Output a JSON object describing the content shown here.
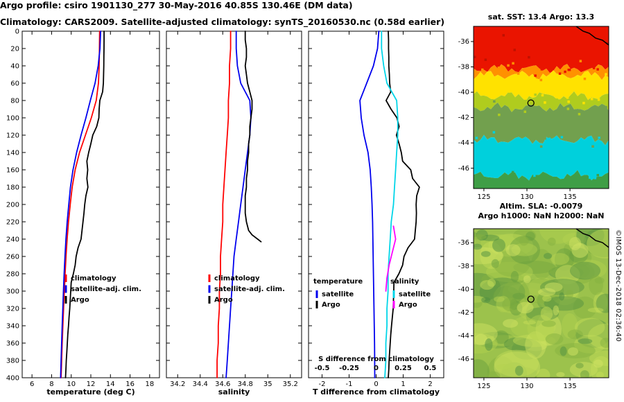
{
  "header": {
    "title_line1": "Argo profile: csiro 1901130_277 30-May-2016 40.85S 130.46E (DM data)",
    "title_line2": "Climatology: CARS2009. Satellite-adjusted climatology: synTS_20160530.nc (0.58d earlier)"
  },
  "footer": {
    "copyright": "©IMOS 13-Dec-2018 02:36:40"
  },
  "colors": {
    "climatology": "#ff0000",
    "satellite_adjusted": "#0000ee",
    "argo": "#000000",
    "satellite_salinity": "#00d5e8",
    "argo_salinity": "#ff00ff"
  },
  "chart_data": [
    {
      "type": "line",
      "name": "temperature-profile",
      "xlabel": "temperature (deg C)",
      "xlim": [
        5,
        19
      ],
      "ylim": [
        400,
        0
      ],
      "xticks": [
        6,
        8,
        10,
        12,
        14,
        16,
        18
      ],
      "yticks": [
        0,
        20,
        40,
        60,
        80,
        100,
        120,
        140,
        160,
        180,
        200,
        220,
        240,
        260,
        280,
        300,
        320,
        340,
        360,
        380,
        400
      ],
      "legend": [
        {
          "label": "climatology",
          "color": "#ff0000"
        },
        {
          "label": "satellite-adj. clim.",
          "color": "#0000ee"
        },
        {
          "label": "Argo",
          "color": "#000000"
        }
      ],
      "series": [
        {
          "name": "climatology",
          "color": "#ff0000",
          "depths": [
            0,
            20,
            40,
            60,
            80,
            100,
            120,
            140,
            160,
            180,
            200,
            220,
            240,
            260,
            280,
            300,
            320,
            340,
            360,
            380,
            400
          ],
          "values": [
            12.9,
            12.88,
            12.85,
            12.78,
            12.55,
            12.05,
            11.45,
            10.85,
            10.4,
            10.1,
            9.9,
            9.72,
            9.58,
            9.47,
            9.38,
            9.3,
            9.22,
            9.15,
            9.08,
            9.02,
            8.97
          ]
        },
        {
          "name": "satellite-adj-clim",
          "color": "#0000ee",
          "depths": [
            0,
            20,
            40,
            60,
            80,
            100,
            120,
            140,
            160,
            180,
            200,
            220,
            240,
            260,
            280,
            300,
            320,
            340,
            360,
            380,
            400
          ],
          "values": [
            13.0,
            12.93,
            12.75,
            12.43,
            11.95,
            11.5,
            11.0,
            10.55,
            10.18,
            9.92,
            9.75,
            9.59,
            9.46,
            9.36,
            9.28,
            9.21,
            9.14,
            9.08,
            9.02,
            8.97,
            8.92
          ]
        },
        {
          "name": "argo",
          "color": "#000000",
          "depths": [
            0,
            10,
            20,
            30,
            40,
            50,
            60,
            70,
            80,
            90,
            100,
            110,
            120,
            130,
            140,
            150,
            160,
            170,
            180,
            190,
            200,
            210,
            220,
            230,
            240,
            250,
            260,
            270,
            280,
            290,
            300,
            310,
            320,
            330,
            340,
            350,
            360,
            370,
            380,
            390,
            400
          ],
          "values": [
            13.35,
            13.35,
            13.34,
            13.33,
            13.32,
            13.3,
            13.28,
            13.2,
            12.92,
            12.85,
            12.82,
            12.6,
            12.2,
            12.0,
            11.78,
            11.6,
            11.68,
            11.6,
            11.7,
            11.5,
            11.38,
            11.3,
            11.2,
            11.1,
            11.0,
            10.7,
            10.5,
            10.4,
            10.22,
            10.0,
            9.95,
            9.9,
            9.85,
            9.78,
            9.72,
            9.65,
            9.6,
            9.55,
            9.5,
            9.46,
            9.42
          ]
        }
      ]
    },
    {
      "type": "line",
      "name": "salinity-profile",
      "xlabel": "salinity",
      "xlim": [
        34.1,
        35.3
      ],
      "ylim": [
        400,
        0
      ],
      "xticks": [
        34.2,
        34.4,
        34.6,
        34.8,
        35,
        35.2
      ],
      "yticks": [
        0,
        20,
        40,
        60,
        80,
        100,
        120,
        140,
        160,
        180,
        200,
        220,
        240,
        260,
        280,
        300,
        320,
        340,
        360,
        380,
        400
      ],
      "legend": [
        {
          "label": "climatology",
          "color": "#ff0000"
        },
        {
          "label": "satellite-adj. clim.",
          "color": "#0000ee"
        },
        {
          "label": "Argo",
          "color": "#000000"
        }
      ],
      "series": [
        {
          "name": "climatology",
          "color": "#ff0000",
          "depths": [
            0,
            20,
            40,
            60,
            80,
            100,
            120,
            140,
            160,
            180,
            200,
            220,
            240,
            260,
            280,
            300,
            320,
            340,
            360,
            380,
            400
          ],
          "values": [
            34.67,
            34.67,
            34.66,
            34.66,
            34.65,
            34.65,
            34.64,
            34.63,
            34.62,
            34.61,
            34.6,
            34.6,
            34.59,
            34.58,
            34.58,
            34.57,
            34.57,
            34.56,
            34.56,
            34.55,
            34.55
          ]
        },
        {
          "name": "satellite-adj-clim",
          "color": "#0000ee",
          "depths": [
            0,
            20,
            40,
            60,
            80,
            100,
            120,
            140,
            160,
            180,
            200,
            220,
            240,
            260,
            280,
            300,
            320,
            340,
            360,
            380,
            400
          ],
          "values": [
            34.72,
            34.72,
            34.73,
            34.76,
            34.84,
            34.85,
            34.84,
            34.82,
            34.8,
            34.78,
            34.76,
            34.74,
            34.72,
            34.7,
            34.69,
            34.68,
            34.67,
            34.66,
            34.65,
            34.64,
            34.63
          ]
        },
        {
          "name": "argo",
          "color": "#000000",
          "depths": [
            0,
            10,
            20,
            30,
            40,
            50,
            60,
            70,
            80,
            90,
            100,
            110,
            120,
            130,
            140,
            150,
            160,
            170,
            180,
            190,
            200,
            210,
            220,
            230,
            235,
            240,
            243
          ],
          "values": [
            34.8,
            34.8,
            34.81,
            34.81,
            34.8,
            34.81,
            34.82,
            34.84,
            34.86,
            34.86,
            34.85,
            34.84,
            34.84,
            34.83,
            34.83,
            34.82,
            34.82,
            34.81,
            34.81,
            34.8,
            34.8,
            34.8,
            34.81,
            34.83,
            34.86,
            34.91,
            34.94
          ]
        }
      ]
    },
    {
      "type": "line",
      "name": "difference-profile",
      "xlabel": "T difference from climatology",
      "xlim": [
        -2.5,
        2.5
      ],
      "ylim": [
        400,
        0
      ],
      "xticks": [
        -2,
        -1,
        0,
        1,
        2
      ],
      "yticks": [
        0,
        20,
        40,
        60,
        80,
        100,
        120,
        140,
        160,
        180,
        200,
        220,
        240,
        260,
        280,
        300,
        320,
        340,
        360,
        380,
        400
      ],
      "s_axis": {
        "label": "S difference from climatology",
        "ticks": [
          -0.5,
          -0.25,
          0,
          0.25,
          0.5
        ],
        "scale_to_T_axis": 4
      },
      "legend_groups": [
        {
          "title": "temperature",
          "entries": [
            {
              "label": "satellite",
              "color": "#0000ee"
            },
            {
              "label": "Argo",
              "color": "#000000"
            }
          ]
        },
        {
          "title": "salinity",
          "entries": [
            {
              "label": "satellite",
              "color": "#00d5e8"
            },
            {
              "label": "Argo",
              "color": "#ff00ff"
            }
          ]
        }
      ],
      "series": [
        {
          "name": "t-diff-satellite",
          "color": "#0000ee",
          "axis": "T",
          "depths": [
            0,
            20,
            40,
            60,
            80,
            100,
            120,
            140,
            160,
            180,
            200,
            220,
            240,
            260,
            280,
            300,
            320,
            340,
            360,
            380,
            400
          ],
          "values": [
            0.1,
            0.05,
            -0.1,
            -0.35,
            -0.6,
            -0.55,
            -0.45,
            -0.3,
            -0.22,
            -0.18,
            -0.15,
            -0.13,
            -0.12,
            -0.11,
            -0.1,
            -0.09,
            -0.08,
            -0.07,
            -0.06,
            -0.055,
            -0.05
          ]
        },
        {
          "name": "t-diff-argo",
          "color": "#000000",
          "axis": "T",
          "depths": [
            0,
            10,
            20,
            30,
            40,
            50,
            60,
            70,
            80,
            90,
            100,
            110,
            120,
            130,
            140,
            150,
            160,
            170,
            180,
            190,
            200,
            210,
            220,
            230,
            240,
            250,
            260,
            270,
            280,
            290,
            300,
            310,
            320,
            330,
            340,
            350,
            360,
            370,
            380,
            390,
            400
          ],
          "values": [
            0.45,
            0.46,
            0.46,
            0.47,
            0.47,
            0.49,
            0.5,
            0.54,
            0.37,
            0.55,
            0.77,
            0.85,
            0.75,
            0.85,
            0.93,
            0.98,
            1.28,
            1.35,
            1.6,
            1.5,
            1.48,
            1.49,
            1.48,
            1.45,
            1.42,
            1.18,
            1.03,
            0.98,
            0.84,
            0.66,
            0.65,
            0.64,
            0.63,
            0.6,
            0.57,
            0.54,
            0.52,
            0.5,
            0.48,
            0.47,
            0.45
          ]
        },
        {
          "name": "s-diff-satellite",
          "color": "#00d5e8",
          "axis": "S",
          "depths": [
            0,
            20,
            40,
            60,
            80,
            100,
            120,
            140,
            160,
            180,
            200,
            220,
            240,
            260,
            280,
            300,
            320,
            340,
            360,
            380,
            400
          ],
          "values": [
            0.05,
            0.05,
            0.07,
            0.1,
            0.19,
            0.2,
            0.2,
            0.19,
            0.18,
            0.17,
            0.16,
            0.14,
            0.13,
            0.12,
            0.11,
            0.11,
            0.1,
            0.1,
            0.09,
            0.09,
            0.08
          ]
        },
        {
          "name": "s-diff-argo",
          "color": "#ff00ff",
          "axis": "S",
          "depths": [
            225,
            240,
            255,
            270,
            285,
            300
          ],
          "values": [
            0.16,
            0.18,
            0.15,
            0.12,
            0.1,
            0.09
          ]
        }
      ]
    },
    {
      "type": "heatmap",
      "name": "sst-map",
      "title": "sat. SST: 13.4 Argo: 13.3",
      "sst_satellite": 13.4,
      "sst_argo": 13.3,
      "lon_range": [
        123.8,
        139.5
      ],
      "lat_range": [
        -47.6,
        -34.8
      ],
      "lon_ticks": [
        125,
        130,
        135
      ],
      "lat_ticks": [
        -36,
        -38,
        -40,
        -42,
        -44,
        -46
      ],
      "float_marker": {
        "lon": 130.46,
        "lat": -40.85
      },
      "bands": [
        {
          "color": "#ea1400",
          "to": 0.26
        },
        {
          "color": "#ff9100",
          "to": 0.3
        },
        {
          "color": "#ffe200",
          "to": 0.43
        },
        {
          "color": "#b0cc1e",
          "to": 0.5
        },
        {
          "color": "#72a04e",
          "to": 0.7
        },
        {
          "color": "#00d0dc",
          "to": 0.92
        },
        {
          "color": "#3f9e46",
          "to": 1.0
        }
      ]
    },
    {
      "type": "heatmap",
      "name": "sla-map",
      "title_line1": "Altim. SLA: -0.0079",
      "title_line2": "Argo h1000: NaN h2000: NaN",
      "sla_value": -0.0079,
      "argo_h1000": "NaN",
      "argo_h2000": "NaN",
      "lon_range": [
        123.8,
        139.5
      ],
      "lat_range": [
        -47.6,
        -34.8
      ],
      "lon_ticks": [
        125,
        130,
        135
      ],
      "lat_ticks": [
        -36,
        -38,
        -40,
        -42,
        -44,
        -46
      ],
      "float_marker": {
        "lon": 130.46,
        "lat": -40.85
      },
      "base_color": "#9cc24c",
      "blob_colors": [
        "#c6dd58",
        "#b4d250",
        "#86b240",
        "#659e3e",
        "#4f8f41",
        "#d2e464"
      ]
    }
  ]
}
